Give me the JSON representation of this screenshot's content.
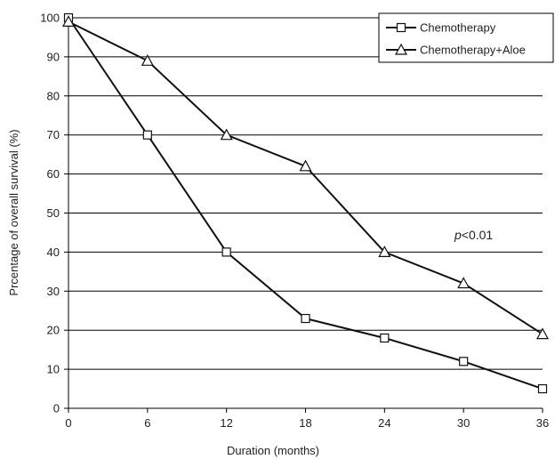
{
  "chart_data": {
    "type": "line",
    "xlabel": "Duration (months)",
    "ylabel": "Prcentage of overall survival (%)",
    "x": [
      0,
      6,
      12,
      18,
      24,
      30,
      36
    ],
    "xlim": [
      0,
      36
    ],
    "ylim": [
      0,
      100
    ],
    "x_ticks": [
      "0",
      "6",
      "12",
      "18",
      "24",
      "30",
      "36"
    ],
    "y_ticks": [
      "0",
      "10",
      "20",
      "30",
      "40",
      "50",
      "60",
      "70",
      "80",
      "90",
      "100"
    ],
    "grid": "horizontal",
    "legend_position": "top-right",
    "series": [
      {
        "name": "Chemotherapy",
        "marker": "square",
        "values": [
          100,
          70,
          40,
          23,
          18,
          12,
          5
        ]
      },
      {
        "name": "Chemotherapy+Aloe",
        "marker": "triangle",
        "values": [
          99,
          89,
          70,
          62,
          40,
          32,
          19
        ]
      }
    ],
    "annotation": {
      "prefix": "p",
      "text": "<0.01"
    },
    "colors": {
      "line": "#111111",
      "grid": "#000000",
      "marker_fill": "#ffffff"
    }
  }
}
